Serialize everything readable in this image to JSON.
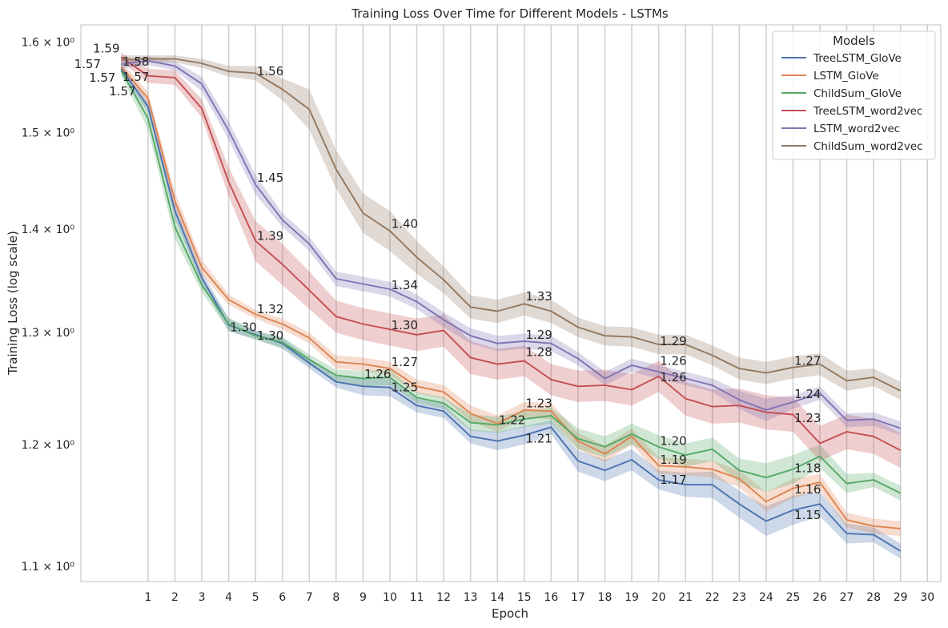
{
  "chart_data": {
    "type": "line",
    "title": "Training Loss Over Time for Different Models - LSTMs",
    "xlabel": "Epoch",
    "ylabel": "Training Loss (log scale)",
    "yscale": "log",
    "ylim": [
      1.088,
      1.62
    ],
    "xlim": [
      -1.5,
      30.5
    ],
    "grid": "vertical",
    "x_ticks": [
      1,
      2,
      3,
      4,
      5,
      6,
      7,
      8,
      9,
      10,
      11,
      12,
      13,
      14,
      15,
      16,
      17,
      18,
      19,
      20,
      21,
      22,
      23,
      24,
      25,
      26,
      27,
      28,
      29,
      30
    ],
    "y_ticks": [
      {
        "value": 1.1,
        "label": "1.1 × 10⁰"
      },
      {
        "value": 1.2,
        "label": "1.2 × 10⁰"
      },
      {
        "value": 1.3,
        "label": "1.3 × 10⁰"
      },
      {
        "value": 1.4,
        "label": "1.4 × 10⁰"
      },
      {
        "value": 1.5,
        "label": "1.5 × 10⁰"
      },
      {
        "value": 1.6,
        "label": "1.6 × 10⁰"
      }
    ],
    "legend_title": "Models",
    "legend_position": "top-right",
    "x": [
      0,
      1,
      2,
      3,
      4,
      5,
      6,
      7,
      8,
      9,
      10,
      11,
      12,
      13,
      14,
      15,
      16,
      17,
      18,
      19,
      20,
      21,
      22,
      23,
      24,
      25,
      26,
      27,
      28,
      29
    ],
    "series": [
      {
        "name": "TreeLSTM_GloVe",
        "color": "#4c72b0",
        "values": [
          1.57,
          1.528,
          1.418,
          1.352,
          1.307,
          1.298,
          1.29,
          1.272,
          1.255,
          1.251,
          1.25,
          1.234,
          1.229,
          1.207,
          1.203,
          1.208,
          1.215,
          1.186,
          1.178,
          1.187,
          1.17,
          1.166,
          1.166,
          1.15,
          1.136,
          1.145,
          1.15,
          1.126,
          1.125,
          1.112
        ],
        "band": [
          0.006,
          0.006,
          0.008,
          0.006,
          0.006,
          0.004,
          0.005,
          0.005,
          0.005,
          0.008,
          0.008,
          0.006,
          0.006,
          0.006,
          0.008,
          0.008,
          0.006,
          0.009,
          0.009,
          0.009,
          0.008,
          0.01,
          0.011,
          0.011,
          0.012,
          0.012,
          0.01,
          0.008,
          0.006,
          0.006
        ]
      },
      {
        "name": "LSTM_GloVe",
        "color": "#dd8452",
        "values": [
          1.572,
          1.537,
          1.428,
          1.362,
          1.331,
          1.317,
          1.308,
          1.295,
          1.273,
          1.271,
          1.267,
          1.251,
          1.246,
          1.227,
          1.218,
          1.23,
          1.229,
          1.203,
          1.192,
          1.207,
          1.182,
          1.181,
          1.179,
          1.171,
          1.152,
          1.163,
          1.168,
          1.137,
          1.132,
          1.13
        ],
        "band": [
          0.006,
          0.007,
          0.009,
          0.007,
          0.005,
          0.004,
          0.005,
          0.005,
          0.006,
          0.006,
          0.006,
          0.006,
          0.006,
          0.007,
          0.007,
          0.007,
          0.007,
          0.007,
          0.007,
          0.007,
          0.007,
          0.007,
          0.007,
          0.007,
          0.008,
          0.008,
          0.007,
          0.006,
          0.006,
          0.006
        ]
      },
      {
        "name": "ChildSum_GloVe",
        "color": "#55a868",
        "values": [
          1.568,
          1.515,
          1.402,
          1.345,
          1.308,
          1.297,
          1.291,
          1.275,
          1.261,
          1.258,
          1.259,
          1.241,
          1.236,
          1.219,
          1.217,
          1.222,
          1.225,
          1.205,
          1.198,
          1.209,
          1.198,
          1.191,
          1.196,
          1.178,
          1.172,
          1.179,
          1.19,
          1.167,
          1.17,
          1.159
        ],
        "band": [
          0.006,
          0.012,
          0.012,
          0.007,
          0.006,
          0.004,
          0.005,
          0.005,
          0.005,
          0.007,
          0.007,
          0.005,
          0.005,
          0.007,
          0.007,
          0.007,
          0.007,
          0.009,
          0.009,
          0.009,
          0.01,
          0.01,
          0.01,
          0.01,
          0.012,
          0.012,
          0.01,
          0.008,
          0.006,
          0.006
        ]
      },
      {
        "name": "TreeLSTM_word2vec",
        "color": "#c44e52",
        "values": [
          1.583,
          1.562,
          1.56,
          1.526,
          1.448,
          1.388,
          1.365,
          1.34,
          1.315,
          1.308,
          1.303,
          1.298,
          1.302,
          1.277,
          1.271,
          1.274,
          1.257,
          1.251,
          1.252,
          1.248,
          1.26,
          1.24,
          1.233,
          1.234,
          1.228,
          1.226,
          1.201,
          1.211,
          1.207,
          1.195
        ],
        "band": [
          0.005,
          0.008,
          0.008,
          0.01,
          0.015,
          0.02,
          0.02,
          0.018,
          0.015,
          0.015,
          0.015,
          0.015,
          0.015,
          0.015,
          0.014,
          0.014,
          0.014,
          0.014,
          0.014,
          0.014,
          0.014,
          0.015,
          0.015,
          0.015,
          0.015,
          0.015,
          0.015,
          0.015,
          0.015,
          0.015
        ]
      },
      {
        "name": "LSTM_word2vec",
        "color": "#8172b3",
        "values": [
          1.575,
          1.579,
          1.573,
          1.553,
          1.502,
          1.445,
          1.409,
          1.385,
          1.351,
          1.346,
          1.341,
          1.329,
          1.312,
          1.297,
          1.29,
          1.292,
          1.29,
          1.276,
          1.258,
          1.27,
          1.264,
          1.258,
          1.252,
          1.239,
          1.23,
          1.237,
          1.245,
          1.221,
          1.222,
          1.214
        ],
        "band": [
          0.005,
          0.005,
          0.005,
          0.008,
          0.01,
          0.01,
          0.007,
          0.007,
          0.007,
          0.007,
          0.007,
          0.007,
          0.007,
          0.007,
          0.007,
          0.007,
          0.007,
          0.006,
          0.006,
          0.006,
          0.006,
          0.006,
          0.006,
          0.008,
          0.01,
          0.006,
          0.006,
          0.006,
          0.006,
          0.006
        ]
      },
      {
        "name": "ChildSum_word2vec",
        "color": "#937860",
        "values": [
          1.58,
          1.581,
          1.581,
          1.576,
          1.567,
          1.565,
          1.547,
          1.525,
          1.461,
          1.416,
          1.398,
          1.372,
          1.35,
          1.324,
          1.32,
          1.327,
          1.32,
          1.305,
          1.297,
          1.296,
          1.289,
          1.289,
          1.279,
          1.267,
          1.263,
          1.268,
          1.271,
          1.256,
          1.259,
          1.247
        ],
        "band": [
          0.005,
          0.004,
          0.004,
          0.005,
          0.006,
          0.008,
          0.012,
          0.022,
          0.02,
          0.02,
          0.02,
          0.016,
          0.013,
          0.011,
          0.011,
          0.011,
          0.011,
          0.009,
          0.009,
          0.009,
          0.009,
          0.009,
          0.009,
          0.01,
          0.01,
          0.01,
          0.01,
          0.009,
          0.008,
          0.008
        ]
      }
    ],
    "annotations": [
      {
        "text": "1.59",
        "x": -1.05,
        "y": 1.593
      },
      {
        "text": "1.57",
        "x": -1.75,
        "y": 1.575
      },
      {
        "text": "1.57",
        "x": -1.2,
        "y": 1.56
      },
      {
        "text": "1.58",
        "x": 0.05,
        "y": 1.578
      },
      {
        "text": "1.57",
        "x": 0.05,
        "y": 1.561
      },
      {
        "text": "1.57",
        "x": -0.45,
        "y": 1.545
      },
      {
        "text": "1.56",
        "x": 5.05,
        "y": 1.567
      },
      {
        "text": "1.45",
        "x": 5.05,
        "y": 1.452
      },
      {
        "text": "1.39",
        "x": 5.05,
        "y": 1.393
      },
      {
        "text": "1.32",
        "x": 5.05,
        "y": 1.322
      },
      {
        "text": "1.30",
        "x": 4.05,
        "y": 1.305
      },
      {
        "text": "1.30",
        "x": 5.05,
        "y": 1.297
      },
      {
        "text": "1.40",
        "x": 10.05,
        "y": 1.405
      },
      {
        "text": "1.34",
        "x": 10.05,
        "y": 1.345
      },
      {
        "text": "1.30",
        "x": 10.05,
        "y": 1.307
      },
      {
        "text": "1.27",
        "x": 10.05,
        "y": 1.273
      },
      {
        "text": "1.26",
        "x": 9.05,
        "y": 1.262
      },
      {
        "text": "1.25",
        "x": 10.05,
        "y": 1.25
      },
      {
        "text": "1.33",
        "x": 15.05,
        "y": 1.334
      },
      {
        "text": "1.29",
        "x": 15.05,
        "y": 1.298
      },
      {
        "text": "1.28",
        "x": 15.05,
        "y": 1.282
      },
      {
        "text": "1.23",
        "x": 15.05,
        "y": 1.236
      },
      {
        "text": "1.22",
        "x": 14.05,
        "y": 1.221
      },
      {
        "text": "1.21",
        "x": 15.05,
        "y": 1.205
      },
      {
        "text": "1.29",
        "x": 20.05,
        "y": 1.292
      },
      {
        "text": "1.26",
        "x": 20.05,
        "y": 1.274
      },
      {
        "text": "1.26",
        "x": 20.05,
        "y": 1.259
      },
      {
        "text": "1.20",
        "x": 20.05,
        "y": 1.203
      },
      {
        "text": "1.19",
        "x": 20.05,
        "y": 1.187
      },
      {
        "text": "1.17",
        "x": 20.05,
        "y": 1.17
      },
      {
        "text": "1.27",
        "x": 25.05,
        "y": 1.274
      },
      {
        "text": "1.24",
        "x": 25.05,
        "y": 1.244
      },
      {
        "text": "1.23",
        "x": 25.05,
        "y": 1.223
      },
      {
        "text": "1.18",
        "x": 25.05,
        "y": 1.18
      },
      {
        "text": "1.16",
        "x": 25.05,
        "y": 1.162
      },
      {
        "text": "1.15",
        "x": 25.05,
        "y": 1.141
      }
    ]
  }
}
